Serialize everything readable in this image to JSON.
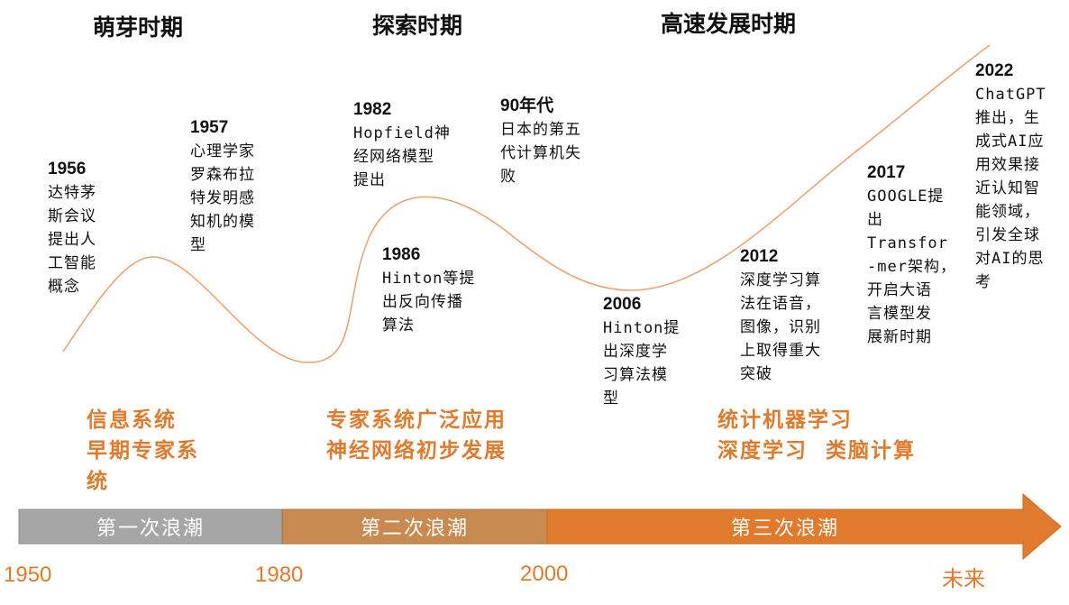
{
  "periods": [
    "萌芽时期",
    "探索时期",
    "高速发展时期"
  ],
  "events": [
    {
      "year": "1956",
      "lines": [
        "达特茅",
        "斯会议",
        "提出人",
        "工智能",
        "概念"
      ]
    },
    {
      "year": "1957",
      "lines": [
        "心理学家",
        "罗森布拉",
        "特发明感",
        "知机的模",
        "型"
      ]
    },
    {
      "year": "1982",
      "lines": [
        "Hopfield神",
        "经网络模型",
        "提出"
      ]
    },
    {
      "year": "1986",
      "lines": [
        "Hinton等提",
        "出反向传播",
        "算法"
      ]
    },
    {
      "year": "90年代",
      "lines": [
        "日本的第五",
        "代计算机失",
        "败"
      ]
    },
    {
      "year": "2006",
      "lines": [
        "Hinton提",
        "出深度学",
        "习算法模",
        "型"
      ]
    },
    {
      "year": "2012",
      "lines": [
        "深度学习算",
        "法在语音，",
        "图像，识别",
        "上取得重大",
        "突破"
      ]
    },
    {
      "year": "2017",
      "lines": [
        "GOOGLE提",
        "出",
        "Transfor",
        "-mer架构，",
        "开启大语",
        "言模型发",
        "展新时期"
      ]
    },
    {
      "year": "2022",
      "lines": [
        "ChatGPT",
        "推出，生",
        "成式AI应",
        "用效果接",
        "近认知智",
        "能领域，",
        "引发全球",
        "对AI的思",
        "考"
      ]
    }
  ],
  "technologies": [
    [
      "信息系统",
      "早期专家系",
      "统"
    ],
    [
      "专家系统广泛应用",
      "神经网络初步发展"
    ],
    [
      "统计机器学习",
      "深度学习  类脑计算"
    ]
  ],
  "waves": [
    "第一次浪潮",
    "第二次浪潮",
    "第三次浪潮"
  ],
  "ticks": [
    "1950",
    "1980",
    "2000",
    "未来"
  ],
  "colors": {
    "curve": "#e8a070",
    "tech_text": "#e07a2c",
    "wave1": "#a6a6a6",
    "wave2": "#c98a52",
    "wave3": "#e07a2c",
    "ticks": "#e07a2c"
  }
}
